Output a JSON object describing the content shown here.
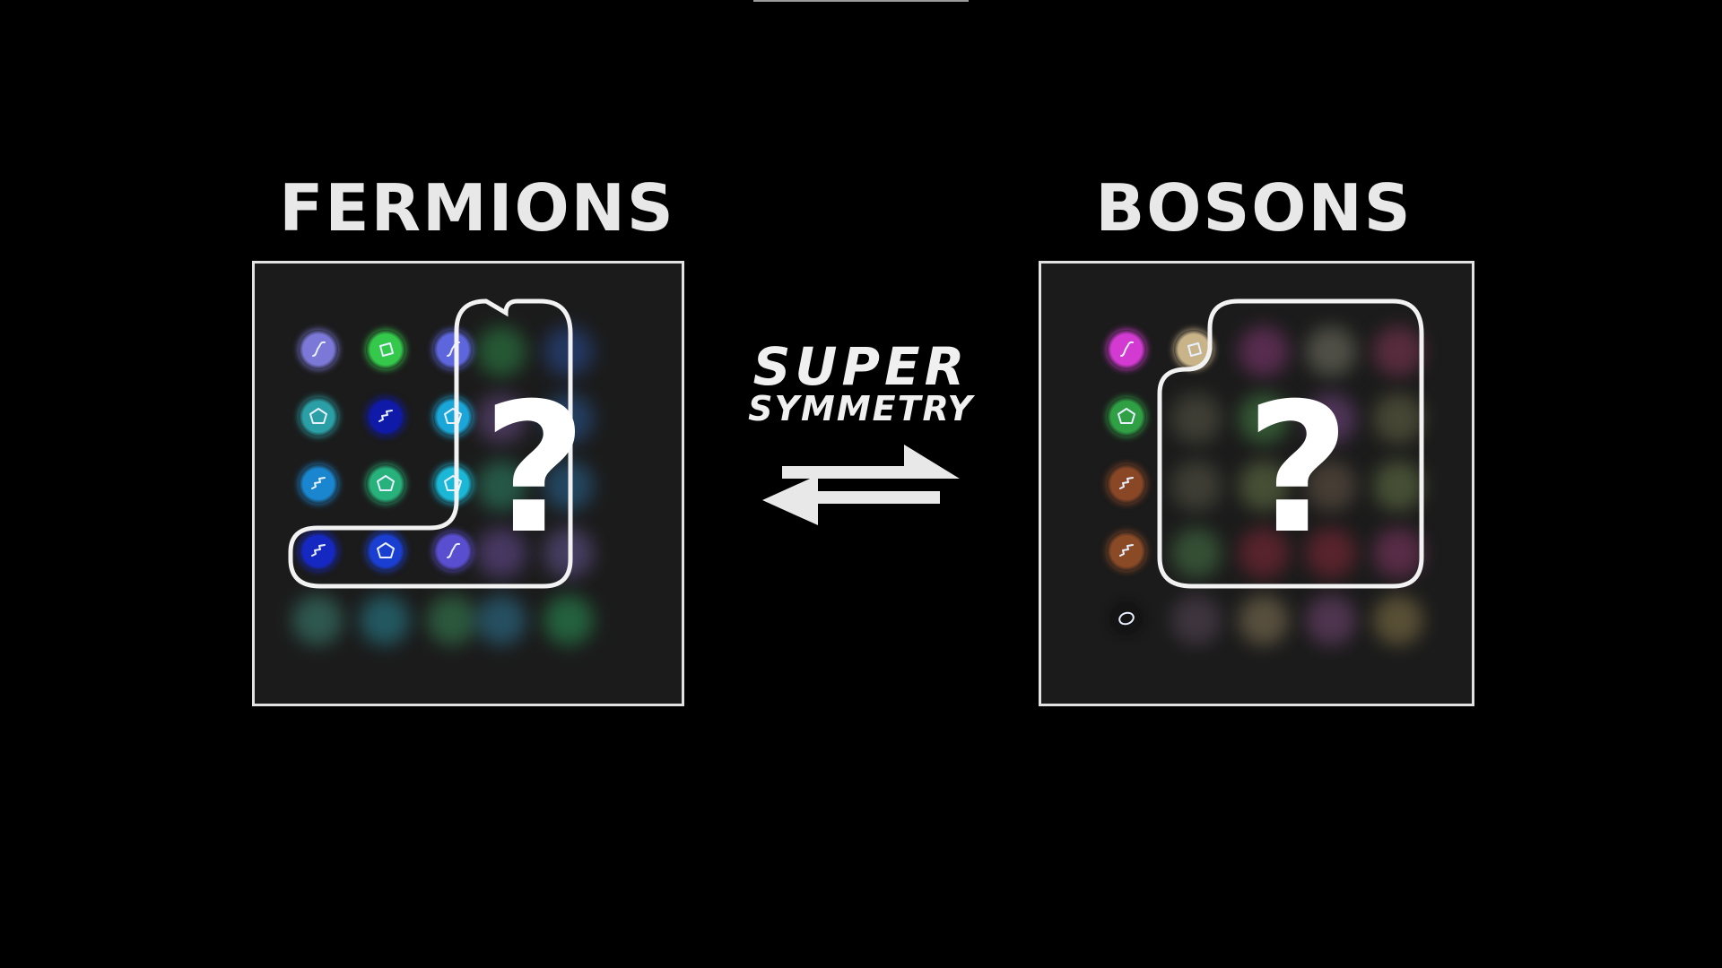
{
  "fermions": {
    "title": "FERMIONS",
    "unknown_symbol": "?",
    "known_particles": [
      {
        "color": "#7b78d8",
        "glyph": "wave"
      },
      {
        "color": "#34c94a",
        "glyph": "square"
      },
      {
        "color": "#5d66dd",
        "glyph": "wave"
      },
      {
        "color": "#2aa0a6",
        "glyph": "pentagon"
      },
      {
        "color": "#0f1aa8",
        "glyph": "zigzag"
      },
      {
        "color": "#1aa6d8",
        "glyph": "pentagon"
      },
      {
        "color": "#1a86d0",
        "glyph": "zigzag"
      },
      {
        "color": "#26b27a",
        "glyph": "pentagon"
      },
      {
        "color": "#1ab8d6",
        "glyph": "pentagon"
      },
      {
        "color": "#1628c2",
        "glyph": "zigzag"
      },
      {
        "color": "#1a3ed2",
        "glyph": "pentagon"
      },
      {
        "color": "#5a4ed0",
        "glyph": "wave"
      }
    ],
    "hidden_partners": [
      {
        "color": "#2f8a4a"
      },
      {
        "color": "#2a4f9a"
      },
      {
        "color": "#6a4f8a"
      },
      {
        "color": "#2a5b9a"
      },
      {
        "color": "#2f8a6a"
      },
      {
        "color": "#2a6a9a"
      },
      {
        "color": "#6a4f9a"
      },
      {
        "color": "#6a5a9a"
      },
      {
        "color": "#3f8a7a"
      },
      {
        "color": "#2a8a9a"
      },
      {
        "color": "#3a8a5a"
      },
      {
        "color": "#2f7a9a"
      },
      {
        "color": "#2a9a5a"
      }
    ]
  },
  "bosons": {
    "title": "BOSONS",
    "unknown_symbol": "?",
    "known_particles": [
      {
        "color": "#d23ad2",
        "glyph": "wave"
      },
      {
        "color": "#c9b48a",
        "glyph": "square"
      },
      {
        "color": "#2fa044",
        "glyph": "pentagon"
      },
      {
        "color": "#8a4726",
        "glyph": "zigzag"
      },
      {
        "color": "#8a4a26",
        "glyph": "zigzag"
      },
      {
        "color": "#141414",
        "glyph": "ring"
      }
    ],
    "hidden_partners": [
      {
        "color": "#8a3a7a"
      },
      {
        "color": "#7a7a6a"
      },
      {
        "color": "#8a3a5a"
      },
      {
        "color": "#5a5a4a"
      },
      {
        "color": "#4a8a4a"
      },
      {
        "color": "#7a4a8a"
      },
      {
        "color": "#6a6a4a"
      },
      {
        "color": "#5a5a4a"
      },
      {
        "color": "#6a7a4a"
      },
      {
        "color": "#6a5a4a"
      },
      {
        "color": "#6a7a4a"
      },
      {
        "color": "#4a7a4a"
      },
      {
        "color": "#8a2a3a"
      },
      {
        "color": "#8a2a3a"
      },
      {
        "color": "#8a3a6a"
      },
      {
        "color": "#5a4a5a"
      },
      {
        "color": "#8a7a5a"
      },
      {
        "color": "#7a4a7a"
      },
      {
        "color": "#8a7a4a"
      }
    ]
  },
  "transformation": {
    "line1": "SUPER",
    "line2": "SYMMETRY"
  },
  "colors": {
    "background": "#000000",
    "panel_fill": "#1b1b1b",
    "panel_border": "#e2e2e2",
    "text": "#e8e8e8"
  }
}
